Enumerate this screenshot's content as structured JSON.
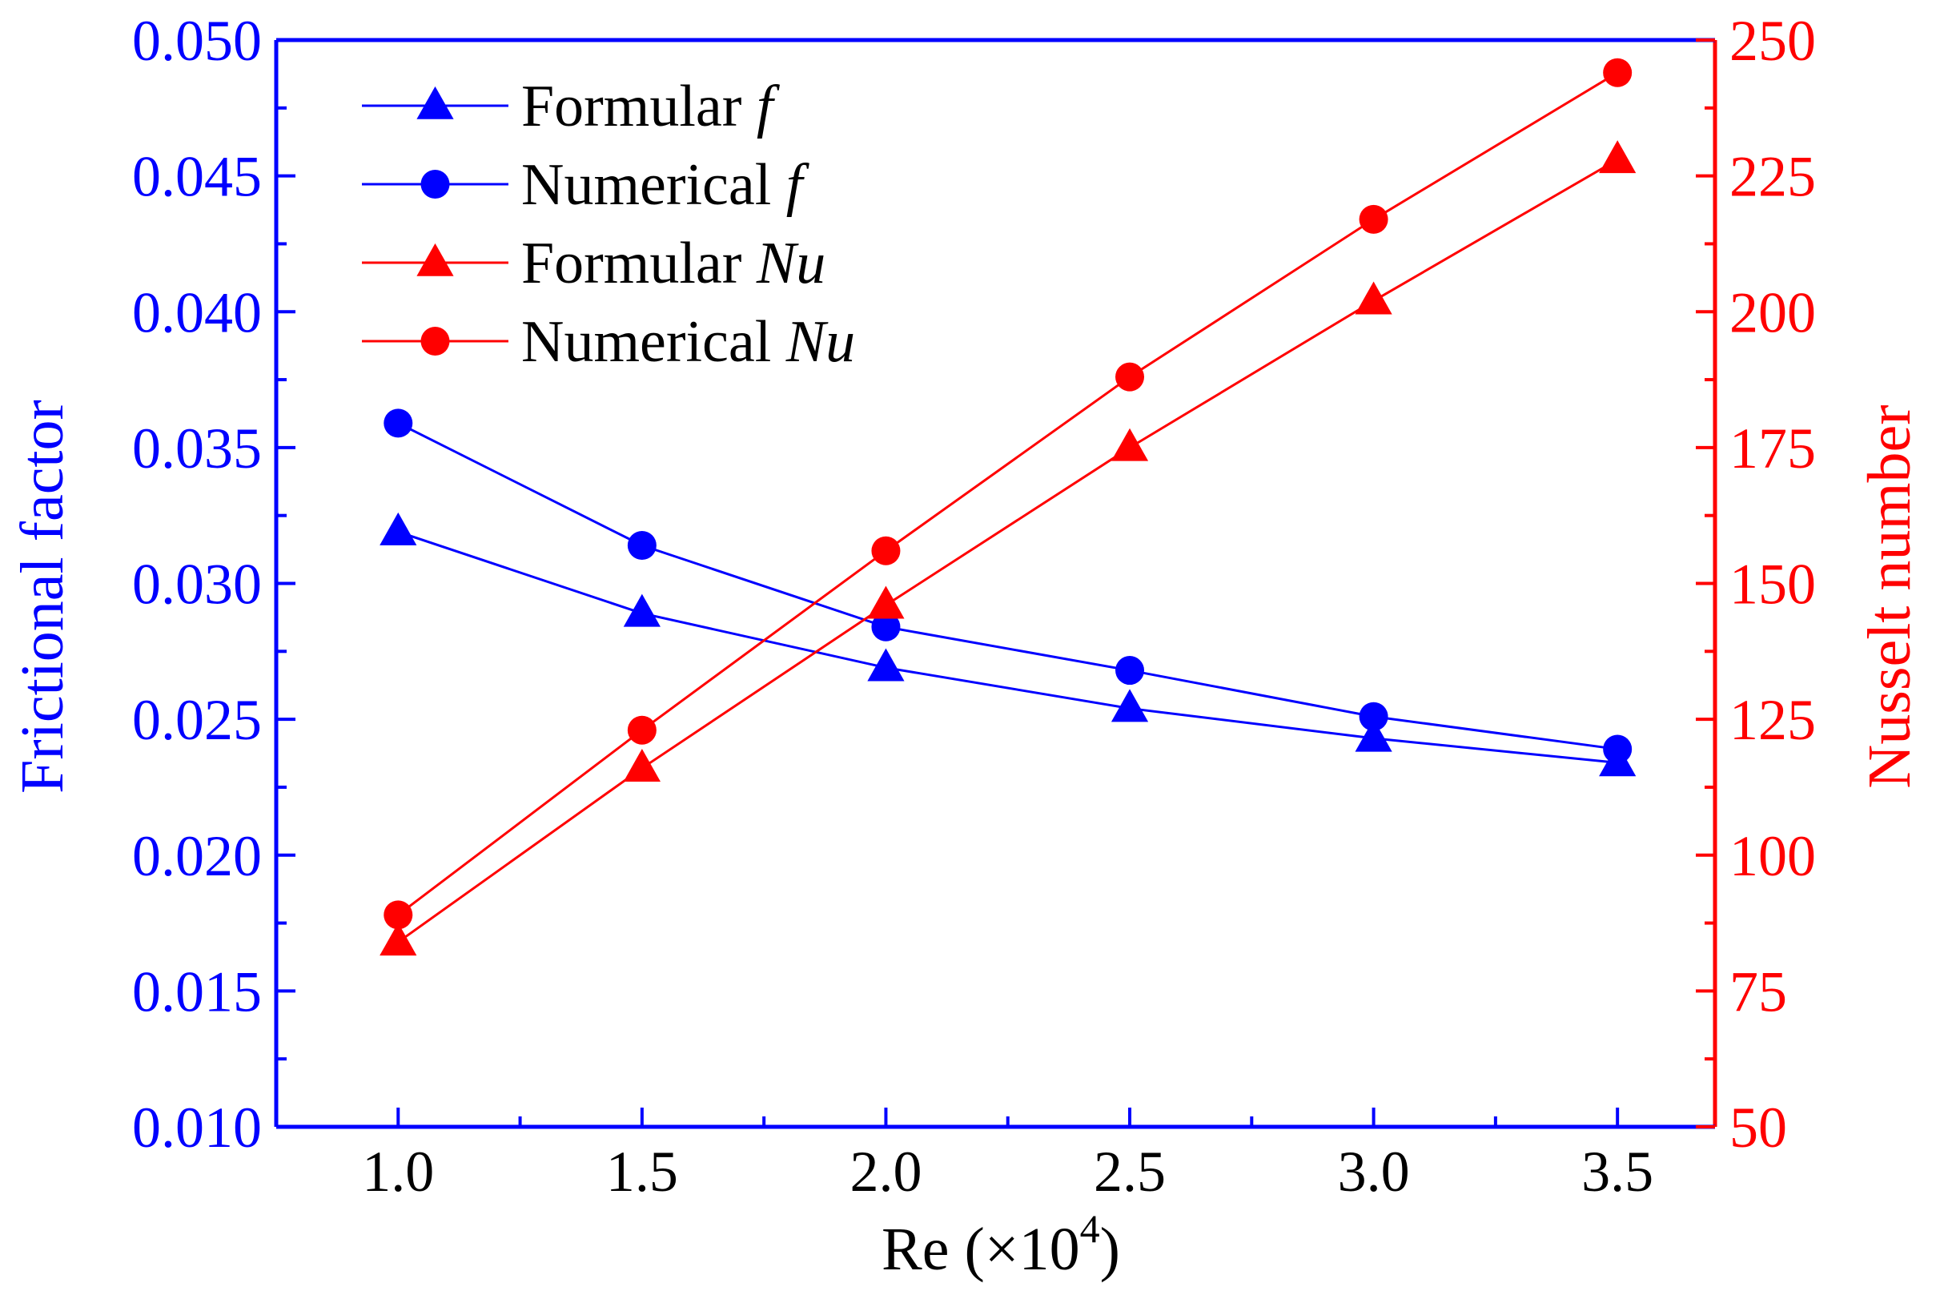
{
  "chart_data": {
    "type": "line",
    "x": [
      1.0,
      1.5,
      2.0,
      2.5,
      3.0,
      3.5
    ],
    "x_ticks": [
      "1.0",
      "1.5",
      "2.0",
      "2.5",
      "3.0",
      "3.5"
    ],
    "xlim": [
      0.75,
      3.7
    ],
    "xlabel": "Re (×10",
    "xlabel_sup": "4",
    "xlabel_close": ")",
    "left_axis": {
      "label": "Frictional factor",
      "ylim": [
        0.01,
        0.05
      ],
      "ticks": [
        "0.010",
        "0.015",
        "0.020",
        "0.025",
        "0.030",
        "0.035",
        "0.040",
        "0.045",
        "0.050"
      ],
      "tick_values": [
        0.01,
        0.015,
        0.02,
        0.025,
        0.03,
        0.035,
        0.04,
        0.045,
        0.05
      ],
      "color": "#0000ff"
    },
    "right_axis": {
      "label": "Nusselt number",
      "ylim": [
        50,
        250
      ],
      "ticks": [
        "50",
        "75",
        "100",
        "125",
        "150",
        "175",
        "200",
        "225",
        "250"
      ],
      "tick_values": [
        50,
        75,
        100,
        125,
        150,
        175,
        200,
        225,
        250
      ],
      "color": "#ff0000"
    },
    "series": [
      {
        "name": "Formular",
        "name_italic": "f",
        "axis": "left",
        "marker": "triangle",
        "color": "#0000ff",
        "values": [
          0.0319,
          0.0289,
          0.0269,
          0.0254,
          0.0243,
          0.0234
        ]
      },
      {
        "name": "Numerical",
        "name_italic": "f",
        "axis": "left",
        "marker": "circle",
        "color": "#0000ff",
        "values": [
          0.0359,
          0.0314,
          0.0284,
          0.0268,
          0.0251,
          0.0239
        ]
      },
      {
        "name": "Formular",
        "name_italic": "Nu",
        "axis": "right",
        "marker": "triangle",
        "color": "#ff0000",
        "values": [
          84,
          116,
          146,
          175,
          202,
          228
        ]
      },
      {
        "name": "Numerical",
        "name_italic": "Nu",
        "axis": "right",
        "marker": "circle",
        "color": "#ff0000",
        "values": [
          89,
          123,
          156,
          188,
          217,
          244
        ]
      }
    ],
    "legend_position": "top-left"
  }
}
